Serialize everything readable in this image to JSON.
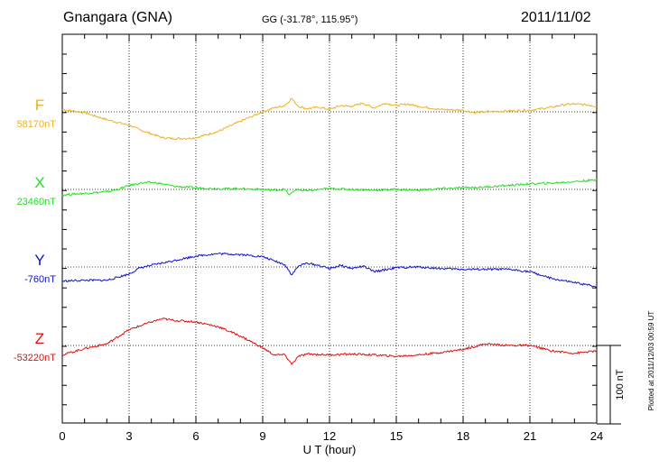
{
  "header": {
    "station": "Gnangara (GNA)",
    "coords": "GG (-31.78°, 115.95°)",
    "date": "2011/11/02"
  },
  "plotted_note": "Plotted at 2011/12/03 00:59 UT",
  "scale_bar_label": "100 nT",
  "colors": {
    "F": "#f0b020",
    "X": "#20e020",
    "Y": "#1010d0",
    "Z": "#e01010"
  },
  "chart_data": {
    "type": "line",
    "title": "Gnangara (GNA)",
    "xlabel": "U T (hour)",
    "ylabel": "",
    "xlim": [
      0,
      24
    ],
    "xticks": [
      "0",
      "3",
      "6",
      "9",
      "12",
      "15",
      "18",
      "21",
      "24"
    ],
    "grid": true,
    "y_units": "nT offset from baseline (100 nT scale bar)",
    "series": [
      {
        "name": "F",
        "baseline_label": "58170nT",
        "x": [
          0,
          1,
          2,
          3,
          3.5,
          4,
          4.5,
          5,
          5.5,
          6,
          7,
          8,
          9,
          9.5,
          10,
          10.3,
          10.6,
          11,
          11.5,
          12,
          12.5,
          13,
          13.5,
          14,
          14.5,
          15,
          15.5,
          16,
          17,
          18,
          18.5,
          19,
          20,
          21,
          22,
          22.5,
          23,
          23.5,
          24
        ],
        "y": [
          3,
          -1,
          -10,
          -17,
          -23,
          -28,
          -33,
          -34,
          -34,
          -33,
          -25,
          -12,
          0,
          5,
          8,
          17,
          7,
          4,
          6,
          3,
          8,
          7,
          11,
          5,
          11,
          8,
          10,
          7,
          3,
          2,
          -1,
          0,
          1,
          2,
          6,
          9,
          10,
          9,
          7
        ]
      },
      {
        "name": "X",
        "baseline_label": "23460nT",
        "x": [
          0,
          0.5,
          1,
          1.5,
          2,
          2.5,
          3,
          3.5,
          4,
          4.5,
          5,
          6,
          7,
          8,
          9,
          9.5,
          10,
          10.2,
          10.5,
          11,
          11.5,
          12,
          13,
          14,
          15,
          16,
          17,
          18,
          19,
          20,
          21,
          22,
          23,
          24
        ],
        "y": [
          -7,
          -6,
          -5,
          -4,
          -3,
          0,
          5,
          8,
          9,
          7,
          4,
          2,
          1,
          1,
          0,
          -1,
          0,
          -7,
          0,
          -2,
          0,
          1,
          0,
          -1,
          0,
          -1,
          1,
          2,
          3,
          5,
          7,
          8,
          10,
          12
        ]
      },
      {
        "name": "Y",
        "baseline_label": "-760nT",
        "x": [
          0,
          1,
          2,
          3,
          3.5,
          4,
          5,
          6,
          7,
          8,
          9,
          9.5,
          10,
          10.3,
          10.6,
          11,
          11.5,
          12,
          12.5,
          13,
          13.5,
          14,
          15,
          16,
          17,
          18,
          19,
          20,
          21,
          22,
          23,
          24
        ],
        "y": [
          -18,
          -17,
          -17,
          -9,
          -1,
          2,
          8,
          14,
          17,
          16,
          13,
          8,
          3,
          -10,
          1,
          5,
          2,
          -2,
          2,
          -2,
          1,
          -6,
          -1,
          0,
          -2,
          -3,
          -3,
          -3,
          -6,
          -15,
          -20,
          -25
        ]
      },
      {
        "name": "Z",
        "baseline_label": "-53220nT",
        "x": [
          0,
          1,
          2,
          3,
          4,
          4.5,
          5,
          6,
          7,
          8,
          9,
          9.5,
          10,
          10.3,
          10.6,
          11,
          12,
          13,
          14,
          15,
          16,
          17,
          18,
          19,
          20,
          21,
          22,
          23,
          24
        ],
        "y": [
          -12,
          -4,
          2,
          20,
          30,
          34,
          32,
          30,
          24,
          12,
          -3,
          -12,
          -12,
          -24,
          -14,
          -11,
          -12,
          -11,
          -12,
          -14,
          -12,
          -9,
          -5,
          2,
          0,
          0,
          -7,
          -10,
          -7
        ]
      }
    ]
  }
}
